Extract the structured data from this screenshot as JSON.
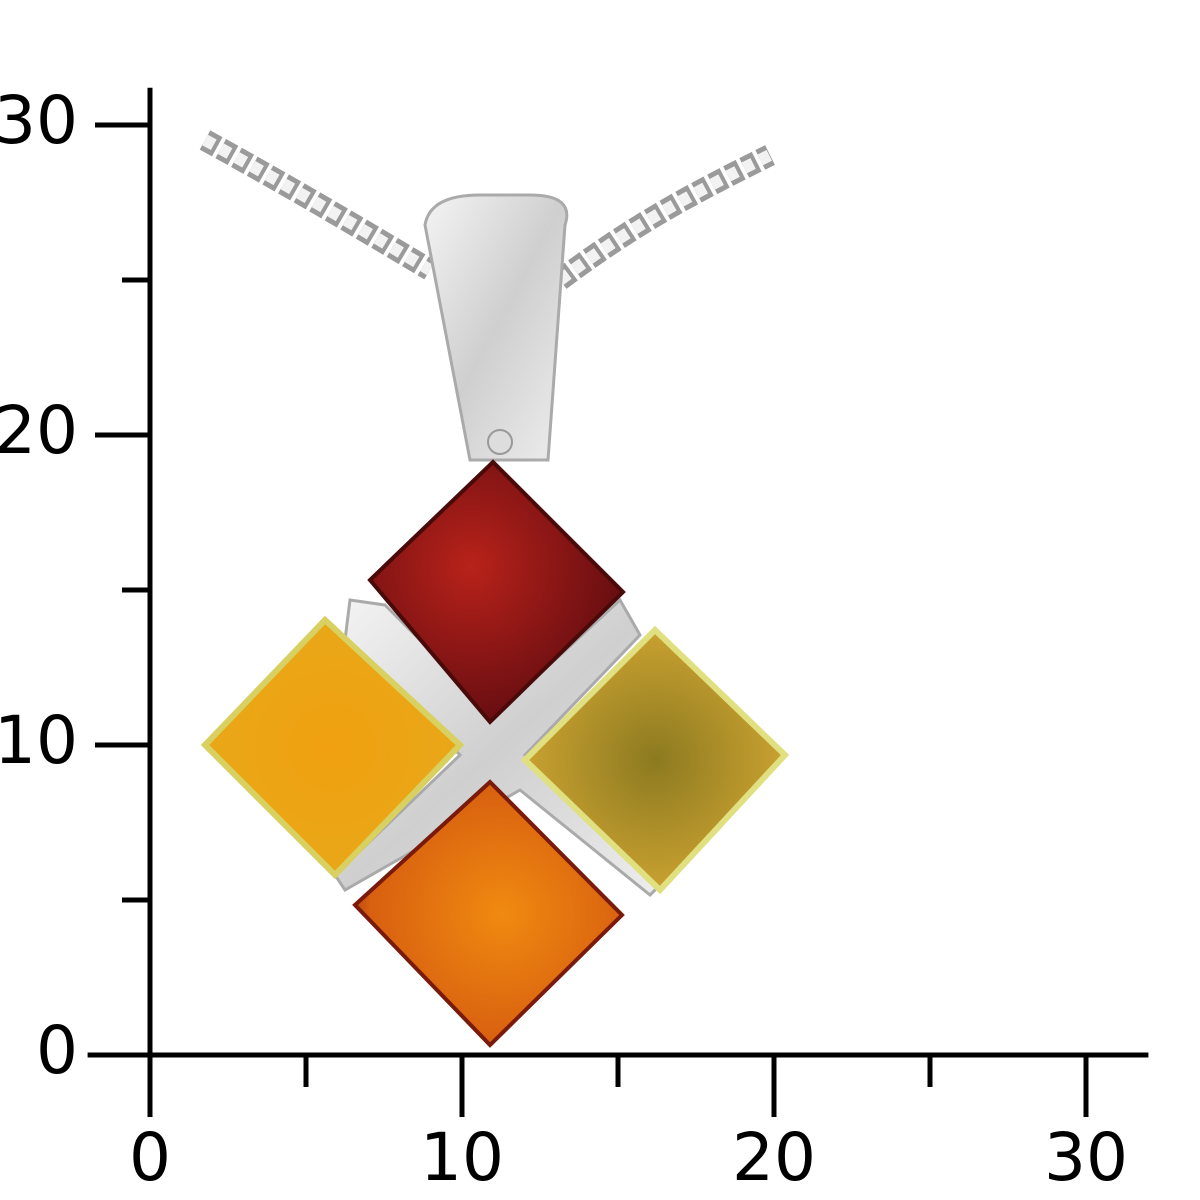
{
  "axes": {
    "x": {
      "lim": [
        -2,
        32
      ],
      "ticks": [
        0,
        10,
        20,
        30
      ],
      "minor_ticks": [
        5,
        15,
        25
      ]
    },
    "y": {
      "lim": [
        -2,
        31.2
      ],
      "ticks": [
        0,
        10,
        20,
        30
      ],
      "minor_ticks": [
        5,
        15,
        25
      ]
    }
  }
}
